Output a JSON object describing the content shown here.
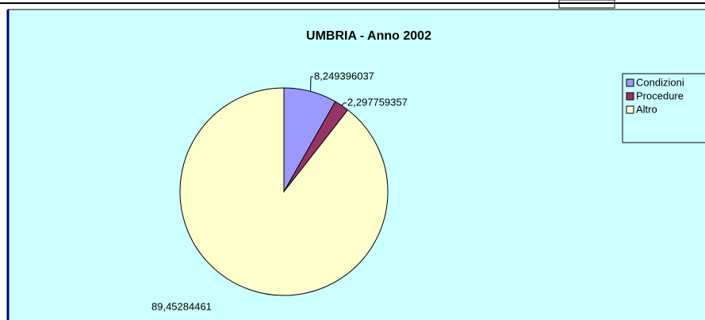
{
  "chart_data": {
    "type": "pie",
    "title": "UMBRIA - Anno 2002",
    "categories": [
      "Condizioni",
      "Procedure",
      "Altro"
    ],
    "values": [
      8.249396037,
      2.297759357,
      89.45284461
    ],
    "value_labels": [
      "8,249396037",
      "2,297759357",
      "89,45284461"
    ],
    "colors": [
      "#9999ff",
      "#993366",
      "#ffffcc"
    ],
    "legend": "right"
  }
}
